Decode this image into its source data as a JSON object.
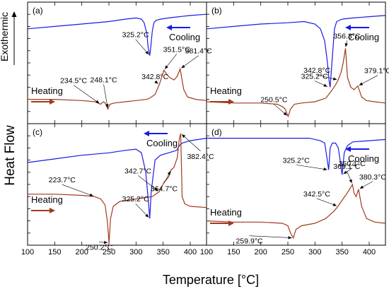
{
  "figure": {
    "ylabel": "Heat Flow",
    "xlabel": "Temperature [°C]",
    "exo_label": "Exothermic"
  },
  "colors": {
    "cooling": "#1a1ae6",
    "heating": "#a03a1c"
  },
  "chart_data": [
    {
      "type": "line",
      "panel": "(a)",
      "xlim": [
        100,
        430
      ],
      "xticks": [
        100,
        150,
        200,
        250,
        300,
        350,
        400
      ],
      "legend": {
        "cooling": "Cooling",
        "heating": "Heating"
      },
      "series": [
        {
          "name": "Cooling",
          "x": [
            100,
            150,
            200,
            250,
            280,
            300,
            310,
            315,
            320,
            322,
            325.2,
            327,
            330,
            333,
            337,
            345,
            360,
            380,
            400,
            430
          ],
          "y": [
            0.78,
            0.8,
            0.82,
            0.84,
            0.86,
            0.87,
            0.86,
            0.83,
            0.74,
            0.64,
            0.56,
            0.62,
            0.76,
            0.83,
            0.85,
            0.86,
            0.87,
            0.88,
            0.89,
            0.9
          ]
        },
        {
          "name": "Heating",
          "x": [
            100,
            150,
            200,
            225,
            234.5,
            240,
            243,
            248.1,
            252,
            260,
            280,
            300,
            320,
            325.2,
            335,
            342.8,
            351.5,
            356,
            362,
            370,
            376,
            381.4,
            388,
            395,
            410,
            430
          ],
          "y": [
            0.2,
            0.2,
            0.19,
            0.18,
            0.16,
            0.18,
            0.17,
            0.12,
            0.16,
            0.17,
            0.18,
            0.19,
            0.2,
            0.21,
            0.24,
            0.32,
            0.44,
            0.41,
            0.38,
            0.36,
            0.39,
            0.45,
            0.28,
            0.22,
            0.2,
            0.19
          ]
        }
      ],
      "annotations": [
        {
          "text": "325.2°C",
          "x": 325.2,
          "y": 0.56
        },
        {
          "text": "351.5°C",
          "x": 351.5,
          "y": 0.44
        },
        {
          "text": "381.4°C",
          "x": 381.4,
          "y": 0.45
        },
        {
          "text": "342.8°C",
          "x": 342.8,
          "y": 0.32
        },
        {
          "text": "234.5°C",
          "x": 234.5,
          "y": 0.16
        },
        {
          "text": "248.1°C",
          "x": 248.1,
          "y": 0.12
        }
      ]
    },
    {
      "type": "line",
      "panel": "(b)",
      "xlim": [
        100,
        430
      ],
      "xticks": [
        100,
        150,
        200,
        250,
        300,
        350,
        400
      ],
      "legend": {
        "cooling": "Cooling",
        "heating": "Heating"
      },
      "series": [
        {
          "name": "Cooling",
          "x": [
            100,
            150,
            200,
            250,
            280,
            300,
            310,
            318,
            323,
            326,
            328,
            332,
            336,
            340,
            350,
            370,
            400,
            430
          ],
          "y": [
            0.78,
            0.8,
            0.82,
            0.83,
            0.84,
            0.82,
            0.78,
            0.68,
            0.5,
            0.35,
            0.3,
            0.55,
            0.78,
            0.84,
            0.86,
            0.87,
            0.88,
            0.89
          ]
        },
        {
          "name": "Heating",
          "x": [
            100,
            150,
            200,
            230,
            240,
            245,
            250.5,
            255,
            262,
            275,
            300,
            320,
            325.2,
            332,
            338,
            342.8,
            348,
            352,
            356.3,
            360,
            366,
            372,
            379.1,
            386,
            395,
            410,
            430
          ],
          "y": [
            0.18,
            0.17,
            0.17,
            0.16,
            0.14,
            0.12,
            0.06,
            0.12,
            0.16,
            0.17,
            0.18,
            0.21,
            0.24,
            0.28,
            0.32,
            0.36,
            0.42,
            0.5,
            0.62,
            0.38,
            0.3,
            0.28,
            0.31,
            0.22,
            0.19,
            0.18,
            0.17
          ]
        }
      ],
      "annotations": [
        {
          "text": "356.3°C",
          "x": 356.3,
          "y": 0.62
        },
        {
          "text": "325.2°C",
          "x": 325.2,
          "y": 0.3
        },
        {
          "text": "379.1°C",
          "x": 379.1,
          "y": 0.31
        },
        {
          "text": "342.8°C",
          "x": 342.8,
          "y": 0.36
        },
        {
          "text": "250.5°C",
          "x": 250.5,
          "y": 0.06
        }
      ]
    },
    {
      "type": "line",
      "panel": "(c)",
      "xlim": [
        100,
        430
      ],
      "xticks": [
        100,
        150,
        200,
        250,
        300,
        350,
        400
      ],
      "legend": {
        "cooling": "Cooling",
        "heating": "Heating"
      },
      "series": [
        {
          "name": "Cooling",
          "x": [
            100,
            150,
            200,
            250,
            280,
            300,
            310,
            318,
            322,
            325.2,
            328,
            335,
            345,
            360,
            375,
            380,
            385,
            400,
            430
          ],
          "y": [
            0.68,
            0.71,
            0.74,
            0.76,
            0.78,
            0.79,
            0.76,
            0.6,
            0.4,
            0.22,
            0.44,
            0.7,
            0.74,
            0.76,
            0.78,
            0.82,
            0.84,
            0.86,
            0.88
          ]
        },
        {
          "name": "Heating",
          "x": [
            100,
            150,
            200,
            223.7,
            235,
            243,
            247,
            250.2,
            253,
            258,
            270,
            300,
            330,
            342.7,
            352,
            360,
            364.7,
            370,
            376,
            380,
            382.4,
            385,
            390,
            400,
            430
          ],
          "y": [
            0.42,
            0.42,
            0.41,
            0.4,
            0.38,
            0.33,
            0.2,
            0.02,
            0.22,
            0.32,
            0.36,
            0.38,
            0.4,
            0.44,
            0.52,
            0.56,
            0.62,
            0.64,
            0.72,
            0.88,
            0.92,
            0.4,
            0.34,
            0.32,
            0.31
          ]
        }
      ],
      "annotations": [
        {
          "text": "223.7°C",
          "x": 223.7,
          "y": 0.4
        },
        {
          "text": "325.2°C",
          "x": 325.2,
          "y": 0.22
        },
        {
          "text": "382.4°C",
          "x": 382.4,
          "y": 0.92
        },
        {
          "text": "342.7°C",
          "x": 342.7,
          "y": 0.44
        },
        {
          "text": "364.7°C",
          "x": 364.7,
          "y": 0.62
        },
        {
          "text": "250.2°C",
          "x": 250.2,
          "y": 0.02
        }
      ]
    },
    {
      "type": "line",
      "panel": "(d)",
      "xlim": [
        100,
        430
      ],
      "xticks": [
        100,
        150,
        200,
        250,
        300,
        350,
        400
      ],
      "legend": {
        "cooling": "Cooling",
        "heating": "Heating"
      },
      "series": [
        {
          "name": "Cooling",
          "x": [
            100,
            150,
            200,
            250,
            290,
            300,
            310,
            318,
            322,
            325.2,
            328,
            332,
            338,
            343,
            347,
            350.1,
            354,
            360,
            370,
            400,
            430
          ],
          "y": [
            0.88,
            0.88,
            0.88,
            0.88,
            0.88,
            0.87,
            0.86,
            0.84,
            0.72,
            0.62,
            0.8,
            0.84,
            0.84,
            0.8,
            0.68,
            0.58,
            0.76,
            0.82,
            0.85,
            0.86,
            0.87
          ]
        },
        {
          "name": "Heating",
          "x": [
            100,
            150,
            200,
            240,
            250,
            255,
            259.9,
            265,
            275,
            300,
            320,
            335,
            342.5,
            350,
            358,
            365,
            369.1,
            372,
            376,
            380.3,
            386,
            395,
            410,
            430
          ],
          "y": [
            0.2,
            0.19,
            0.19,
            0.18,
            0.16,
            0.1,
            0.06,
            0.13,
            0.16,
            0.18,
            0.22,
            0.28,
            0.32,
            0.37,
            0.42,
            0.47,
            0.5,
            0.43,
            0.4,
            0.46,
            0.32,
            0.22,
            0.19,
            0.18
          ]
        }
      ],
      "annotations": [
        {
          "text": "325.2°C",
          "x": 325.2,
          "y": 0.62
        },
        {
          "text": "350.1°C",
          "x": 350.1,
          "y": 0.58
        },
        {
          "text": "369.1°C",
          "x": 369.1,
          "y": 0.5
        },
        {
          "text": "380.3°C",
          "x": 380.3,
          "y": 0.46
        },
        {
          "text": "342.5°C",
          "x": 342.5,
          "y": 0.32
        },
        {
          "text": "259.9°C",
          "x": 259.9,
          "y": 0.06
        }
      ]
    }
  ]
}
